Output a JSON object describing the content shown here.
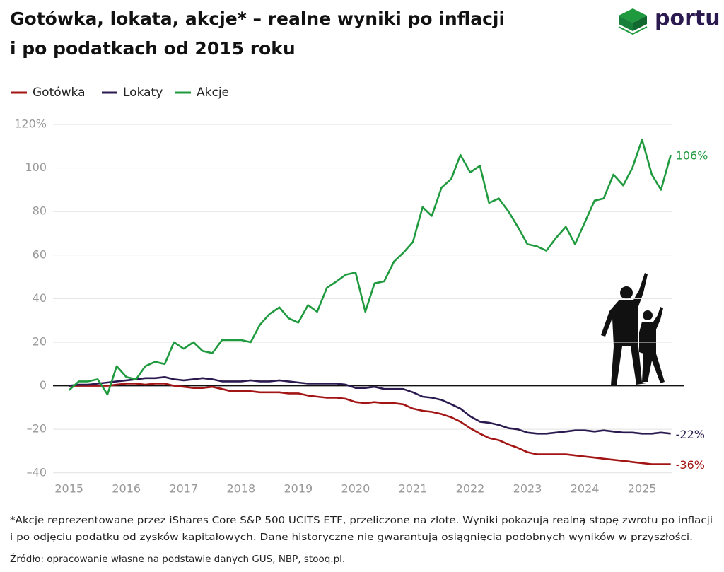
{
  "chart_data": {
    "type": "line",
    "title": [
      "Gotówka, lokata, akcje* – realne wyniki po inflacji",
      "i po podatkach od 2015 roku"
    ],
    "logo": "portu",
    "x": [
      2015,
      2015.17,
      2015.33,
      2015.5,
      2015.67,
      2015.83,
      2016,
      2016.17,
      2016.33,
      2016.5,
      2016.67,
      2016.83,
      2017,
      2017.17,
      2017.33,
      2017.5,
      2017.67,
      2017.83,
      2018,
      2018.17,
      2018.33,
      2018.5,
      2018.67,
      2018.83,
      2019,
      2019.17,
      2019.33,
      2019.5,
      2019.67,
      2019.83,
      2020,
      2020.17,
      2020.33,
      2020.5,
      2020.67,
      2020.83,
      2021,
      2021.17,
      2021.33,
      2021.5,
      2021.67,
      2021.83,
      2022,
      2022.17,
      2022.33,
      2022.5,
      2022.67,
      2022.83,
      2023,
      2023.17,
      2023.33,
      2023.5,
      2023.67,
      2023.83,
      2024,
      2024.17,
      2024.33,
      2024.5,
      2024.67,
      2024.83,
      2025,
      2025.17,
      2025.33,
      2025.5
    ],
    "series": [
      {
        "name": "Gotówka",
        "color": "#a31515",
        "end_label": "-36%",
        "values": [
          0,
          0,
          0,
          0,
          0,
          0.5,
          1,
          1,
          0.5,
          1,
          1,
          0,
          -0.5,
          -1,
          -1,
          -0.5,
          -1.5,
          -2.5,
          -2.5,
          -2.5,
          -3,
          -3,
          -3,
          -3.5,
          -3.5,
          -4.5,
          -5,
          -5.5,
          -5.5,
          -6,
          -7.5,
          -8,
          -7.5,
          -8,
          -8,
          -8.5,
          -10.5,
          -11.5,
          -12,
          -13,
          -14.5,
          -16.5,
          -19.5,
          -22,
          -24,
          -25,
          -27,
          -28.5,
          -30.5,
          -31.5,
          -31.5,
          -31.5,
          -31.5,
          -32,
          -32.5,
          -33,
          -33.5,
          -34,
          -34.5,
          -35,
          -35.5,
          -36,
          -36,
          -36
        ]
      },
      {
        "name": "Lokaty",
        "color": "#2b1a4f",
        "end_label": "-22%",
        "values": [
          0,
          0.5,
          0.5,
          1,
          1.5,
          2,
          2.5,
          3,
          3.5,
          3.5,
          4,
          3,
          2.5,
          3,
          3.5,
          3,
          2,
          2,
          2,
          2.5,
          2,
          2,
          2.5,
          2,
          1.5,
          1,
          1,
          1,
          1,
          0.5,
          -1,
          -1,
          -0.5,
          -1.5,
          -1.5,
          -1.5,
          -3,
          -5,
          -5.5,
          -6.5,
          -8.5,
          -10.5,
          -14,
          -16.5,
          -17,
          -18,
          -19.5,
          -20,
          -21.5,
          -22,
          -22,
          -21.5,
          -21,
          -20.5,
          -20.5,
          -21,
          -20.5,
          -21,
          -21.5,
          -21.5,
          -22,
          -22,
          -21.5,
          -22
        ]
      },
      {
        "name": "Akcje",
        "color": "#1f9a3e",
        "end_label": "106%",
        "values": [
          -2,
          2,
          2,
          3,
          -4,
          9,
          4,
          3,
          9,
          11,
          10,
          20,
          17,
          20,
          16,
          15,
          21,
          21,
          21,
          20,
          28,
          33,
          36,
          31,
          29,
          37,
          34,
          45,
          48,
          51,
          52,
          34,
          47,
          48,
          57,
          61,
          66,
          82,
          78,
          91,
          95,
          106,
          98,
          101,
          84,
          86,
          80,
          73,
          65,
          64,
          62,
          68,
          73,
          65,
          75,
          85,
          86,
          97,
          92,
          100,
          113,
          97,
          90,
          106
        ]
      }
    ],
    "xlim": [
      2014.72,
      2025.64
    ],
    "xticks": [
      2015,
      2016,
      2017,
      2018,
      2019,
      2020,
      2021,
      2022,
      2023,
      2024,
      2025
    ],
    "ylim": [
      -44,
      124
    ],
    "yticks": [
      {
        "value": 120,
        "label": "120%"
      },
      100,
      80,
      60,
      40,
      20,
      0,
      {
        "value": -20,
        "label": "–20"
      },
      {
        "value": -40,
        "label": "–40"
      }
    ],
    "grid": true,
    "legend": "top-left",
    "footnote": [
      "*Akcje reprezentowane przez iShares Core S&P 500 UCITS ETF, przeliczone na złote. Wyniki pokazują realną stopę zwrotu po inflacji",
      "i po odjęciu podatku od zysków kapitałowych. Dane historyczne nie gwarantują osiągnięcia podobnych wyników w przyszłości."
    ],
    "source": "Źródło: opracowanie własne na podstawie danych GUS, NBP, stooq.pl."
  }
}
